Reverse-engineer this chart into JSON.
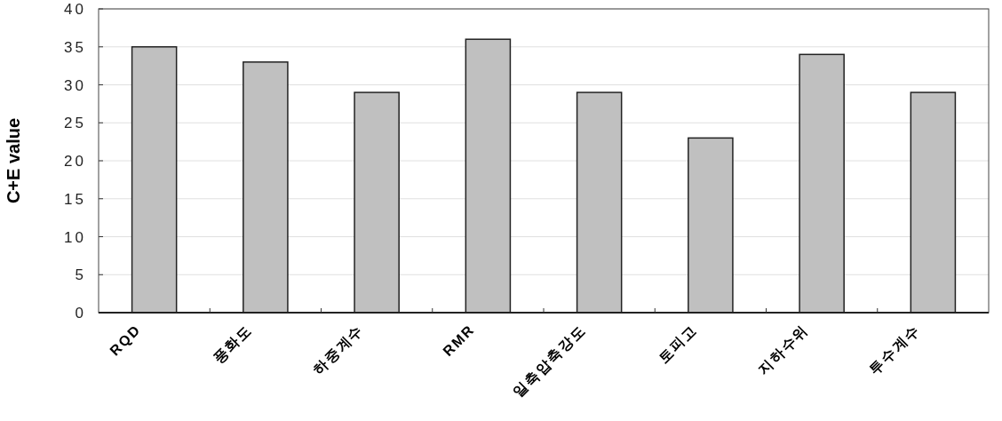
{
  "chart_data": {
    "type": "bar",
    "ylabel": "C+E value",
    "categories": [
      "RQD",
      "풍화도",
      "하중계수",
      "RMR",
      "일축압축강도",
      "토피고",
      "지하수위",
      "투수계수"
    ],
    "values": [
      35,
      33,
      29,
      36,
      29,
      23,
      34,
      29
    ],
    "color": "#c0c0c0",
    "ylim": [
      0,
      40
    ],
    "yticks": [
      0,
      5,
      10,
      15,
      20,
      25,
      30,
      35,
      40
    ],
    "grid": "y"
  }
}
